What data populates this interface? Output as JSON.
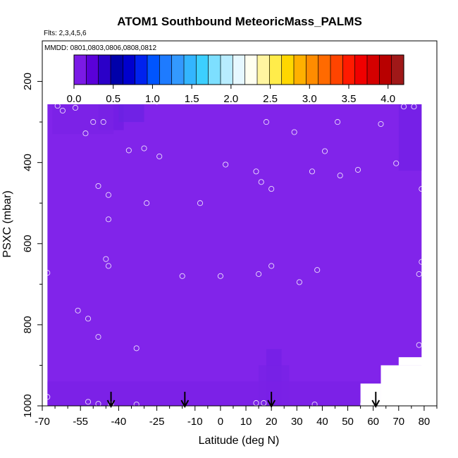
{
  "chart_data": {
    "type": "heatmap",
    "title": "ATOM1 Southbound MeteoricMass_PALMS",
    "subtitle_flights": "Flts: 2,3,4,5,6",
    "subtitle_dates": "MMDD: 0801,0803,0806,0808,0812",
    "xlabel": "Latitude (deg N)",
    "ylabel": "PSXC (mbar)",
    "xlim": [
      -70,
      85
    ],
    "ylim": [
      1000,
      100
    ],
    "y_inverted": true,
    "xticks": [
      -70,
      -55,
      -40,
      -25,
      -10,
      0,
      10,
      20,
      30,
      40,
      50,
      60,
      70,
      80
    ],
    "xtick_labels": [
      "-70",
      "-55",
      "-40",
      "-25",
      "-10",
      "0",
      "10",
      "20",
      "30",
      "40",
      "50",
      "60",
      "70",
      "80"
    ],
    "xticks_minor": [
      -65,
      -60,
      -50,
      -45,
      -35,
      -30,
      -20,
      -15,
      -5,
      5,
      15,
      25,
      35,
      45,
      55,
      65,
      75,
      85
    ],
    "yticks": [
      200,
      400,
      600,
      800,
      1000
    ],
    "ytick_labels": [
      "200",
      "400",
      "600",
      "800",
      "1000"
    ],
    "colorbar": {
      "min": 0,
      "max": 4.2,
      "ticks": [
        0.0,
        0.5,
        1.0,
        1.5,
        2.0,
        2.5,
        3.0,
        3.5,
        4.0
      ],
      "tick_labels": [
        "0.0",
        "0.5",
        "1.0",
        "1.5",
        "2.0",
        "2.5",
        "3.0",
        "3.5",
        "4.0"
      ],
      "colors": [
        "#7b1ae6",
        "#5a00d9",
        "#2b00c8",
        "#0000aa",
        "#0000cd",
        "#0022ee",
        "#0055ff",
        "#1e7bff",
        "#3399ff",
        "#33b5ff",
        "#3ccfff",
        "#7ddfff",
        "#b8ecff",
        "#e6f8ff",
        "#fffff0",
        "#fff5a0",
        "#ffec4a",
        "#ffd700",
        "#ffb000",
        "#ff8c00",
        "#ff6a00",
        "#ff4400",
        "#ff1a00",
        "#f00000",
        "#d40000",
        "#b80000",
        "#a01818"
      ]
    },
    "main_fill_value": 0.1,
    "main_fill_color": "#8124ea",
    "data_extent": {
      "lat_range": [
        -68,
        79
      ],
      "top_pressure_mid_lats": 175,
      "top_pressure_edges": 210,
      "bottom_pressure": 1000
    },
    "cells": [
      {
        "lat": [
          -48,
          -38
        ],
        "p": [
          180,
          320
        ],
        "value": 0.3,
        "color": "#6f1ce3"
      },
      {
        "lat": [
          -40,
          -30
        ],
        "p": [
          175,
          300
        ],
        "value": 0.25,
        "color": "#6a22e3"
      },
      {
        "lat": [
          -28,
          -12
        ],
        "p": [
          175,
          230
        ],
        "value": 0.2,
        "color": "#7520e6"
      },
      {
        "lat": [
          -66,
          -42
        ],
        "p": [
          210,
          330
        ],
        "value": 0.15,
        "color": "#7a22e6"
      },
      {
        "lat": [
          70,
          79
        ],
        "p": [
          210,
          420
        ],
        "value": 0.25,
        "color": "#721fe5"
      },
      {
        "lat": [
          18,
          24
        ],
        "p": [
          860,
          1000
        ],
        "value": 0.2,
        "color": "#7320e5"
      },
      {
        "lat": [
          15,
          27
        ],
        "p": [
          900,
          1000
        ],
        "value": 0.2,
        "color": "#7822e6"
      },
      {
        "lat": [
          -68,
          79
        ],
        "p": [
          940,
          1000
        ],
        "value": 0.15,
        "color": "#7b21e6"
      }
    ],
    "missing_regions": [
      {
        "lat": [
          34,
          85
        ],
        "p": [
          100,
          210
        ]
      },
      {
        "lat": [
          -70,
          -45
        ],
        "p": [
          100,
          210
        ]
      },
      {
        "lat": [
          -70,
          -68
        ],
        "p": [
          100,
          1000
        ]
      },
      {
        "lat": [
          63,
          85
        ],
        "p": [
          900,
          1000
        ]
      },
      {
        "lat": [
          70,
          85
        ],
        "p": [
          880,
          900
        ]
      },
      {
        "lat": [
          55,
          63
        ],
        "p": [
          945,
          1000
        ]
      }
    ],
    "sample_points": [
      {
        "lat": -68,
        "p": 225
      },
      {
        "lat": -67,
        "p": 225
      },
      {
        "lat": -64,
        "p": 260
      },
      {
        "lat": -62,
        "p": 272
      },
      {
        "lat": -57,
        "p": 265
      },
      {
        "lat": -53,
        "p": 328
      },
      {
        "lat": -50,
        "p": 300
      },
      {
        "lat": -46,
        "p": 300
      },
      {
        "lat": -45,
        "p": 198
      },
      {
        "lat": -43,
        "p": 225
      },
      {
        "lat": -38,
        "p": 225
      },
      {
        "lat": -36,
        "p": 370
      },
      {
        "lat": -33,
        "p": 225
      },
      {
        "lat": -30,
        "p": 365
      },
      {
        "lat": -25,
        "p": 250
      },
      {
        "lat": -24,
        "p": 385
      },
      {
        "lat": -48,
        "p": 458
      },
      {
        "lat": -44,
        "p": 480
      },
      {
        "lat": -44,
        "p": 540
      },
      {
        "lat": -29,
        "p": 500
      },
      {
        "lat": -8,
        "p": 500
      },
      {
        "lat": 2,
        "p": 405
      },
      {
        "lat": 14,
        "p": 422
      },
      {
        "lat": 16,
        "p": 448
      },
      {
        "lat": 18,
        "p": 300
      },
      {
        "lat": 20,
        "p": 465
      },
      {
        "lat": 27,
        "p": 180
      },
      {
        "lat": 29,
        "p": 325
      },
      {
        "lat": 33,
        "p": 210
      },
      {
        "lat": 36,
        "p": 422
      },
      {
        "lat": 41,
        "p": 372
      },
      {
        "lat": 46,
        "p": 300
      },
      {
        "lat": 47,
        "p": 432
      },
      {
        "lat": 52,
        "p": 240
      },
      {
        "lat": 54,
        "p": 418
      },
      {
        "lat": 63,
        "p": 305
      },
      {
        "lat": 67,
        "p": 218
      },
      {
        "lat": 69,
        "p": 402
      },
      {
        "lat": 72,
        "p": 262
      },
      {
        "lat": 76,
        "p": 262
      },
      {
        "lat": 79,
        "p": 465
      },
      {
        "lat": -68,
        "p": 672
      },
      {
        "lat": -45,
        "p": 638
      },
      {
        "lat": -44,
        "p": 655
      },
      {
        "lat": -33,
        "p": 858
      },
      {
        "lat": -15,
        "p": 680
      },
      {
        "lat": 0,
        "p": 680
      },
      {
        "lat": 15,
        "p": 675
      },
      {
        "lat": 20,
        "p": 655
      },
      {
        "lat": 31,
        "p": 695
      },
      {
        "lat": 38,
        "p": 665
      },
      {
        "lat": 78,
        "p": 675
      },
      {
        "lat": 79,
        "p": 645
      },
      {
        "lat": 78,
        "p": 850
      },
      {
        "lat": -56,
        "p": 765
      },
      {
        "lat": -52,
        "p": 785
      },
      {
        "lat": -48,
        "p": 830
      },
      {
        "lat": -68,
        "p": 978
      },
      {
        "lat": -52,
        "p": 990
      },
      {
        "lat": -48,
        "p": 995
      },
      {
        "lat": -43,
        "p": 998
      },
      {
        "lat": -33,
        "p": 1000
      },
      {
        "lat": 14,
        "p": 993
      },
      {
        "lat": 17,
        "p": 993
      },
      {
        "lat": 37,
        "p": 1010
      },
      {
        "lat": 56,
        "p": 995
      }
    ],
    "arrows_lat": [
      -43,
      -14,
      20,
      61
    ]
  }
}
